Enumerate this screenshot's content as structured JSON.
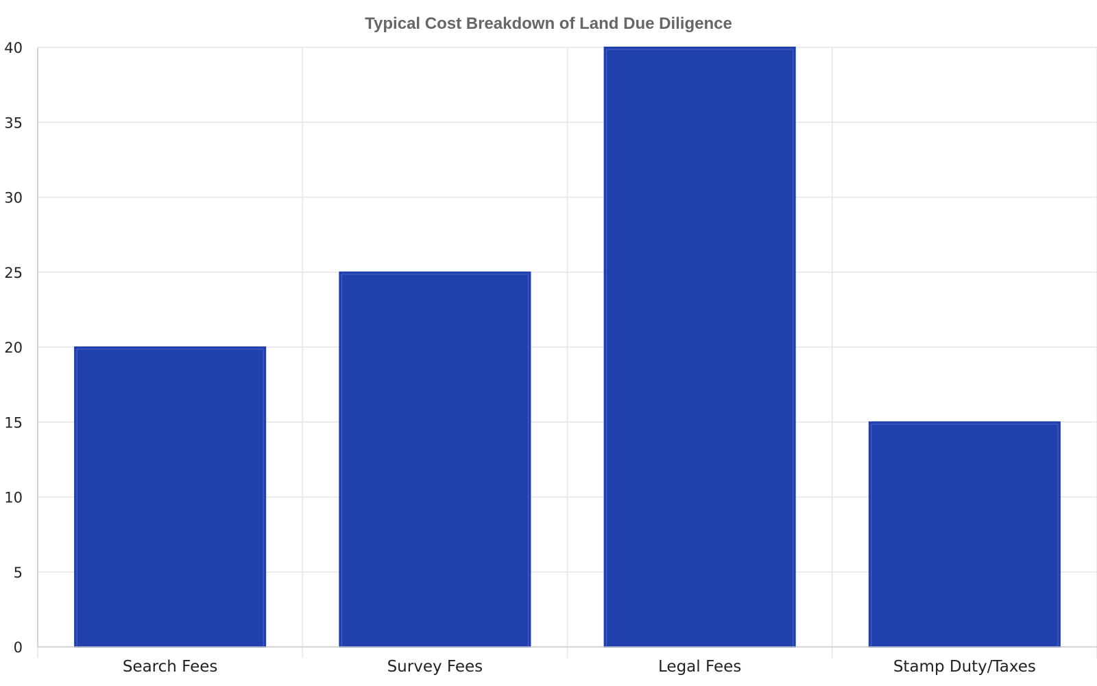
{
  "chart_data": {
    "type": "bar",
    "title": "Typical Cost Breakdown of Land Due Diligence",
    "xlabel": "",
    "ylabel": "",
    "categories": [
      "Search Fees",
      "Survey Fees",
      "Legal Fees",
      "Stamp Duty/Taxes"
    ],
    "values": [
      20,
      25,
      40,
      15
    ],
    "ylim": [
      0,
      40
    ],
    "yticks": [
      0,
      5,
      10,
      15,
      20,
      25,
      30,
      35,
      40
    ],
    "grid": true,
    "legend": "none",
    "colors": {
      "bar_fill": "#1f40ad",
      "bar_inner_stroke": "#4a66c8",
      "grid": "#e6e6e6",
      "title": "#666666"
    }
  }
}
